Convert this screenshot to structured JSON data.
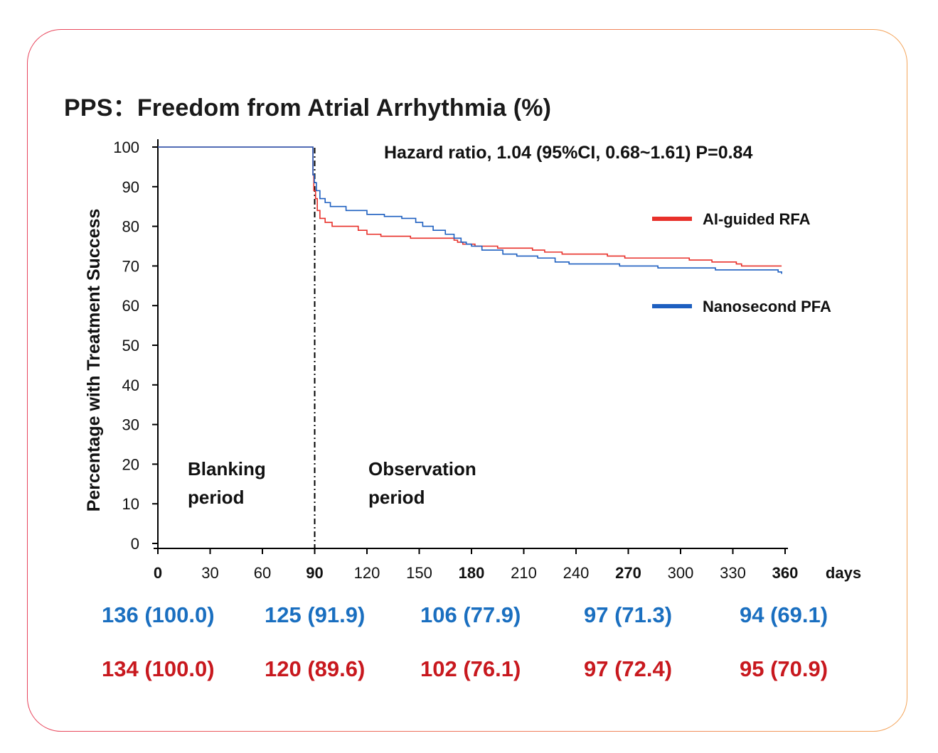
{
  "title": "PPS：Freedom from Atrial Arrhythmia (%)",
  "colors": {
    "red": "#e8302a",
    "blue": "#1d5fc0",
    "risk_blue": "#1a6fc0",
    "risk_red": "#c8181e",
    "frame": "#e8445c"
  },
  "chart_data": {
    "type": "line",
    "step": true,
    "title": "PPS：Freedom from Atrial Arrhythmia (%)",
    "ylabel": "Percentage with Treatment Success",
    "xlabel": "days",
    "xlim": [
      0,
      360
    ],
    "ylim": [
      0,
      100
    ],
    "xticks": [
      0,
      30,
      60,
      90,
      120,
      150,
      180,
      210,
      240,
      270,
      300,
      330,
      360
    ],
    "xticks_bold": [
      0,
      90,
      180,
      270,
      360
    ],
    "yticks": [
      0,
      10,
      20,
      30,
      40,
      50,
      60,
      70,
      80,
      90,
      100
    ],
    "grid": false,
    "legend_position": "right",
    "annotation": "Hazard ratio, 1.04 (95%CI, 0.68~1.61) P=0.84",
    "vline": {
      "x": 90
    },
    "regions": [
      {
        "line1": "Blanking",
        "line2": "period"
      },
      {
        "line1": "Observation",
        "line2": "period"
      }
    ],
    "series": [
      {
        "name": "AI-guided RFA",
        "color": "#e8302a",
        "points": [
          [
            0,
            100
          ],
          [
            89,
            100
          ],
          [
            89,
            93
          ],
          [
            89.5,
            89
          ],
          [
            90.5,
            87
          ],
          [
            91.5,
            84
          ],
          [
            93,
            82
          ],
          [
            96,
            81
          ],
          [
            100,
            80
          ],
          [
            115,
            79
          ],
          [
            120,
            78
          ],
          [
            128,
            77.5
          ],
          [
            145,
            77
          ],
          [
            170,
            76.5
          ],
          [
            172,
            76
          ],
          [
            175,
            75.5
          ],
          [
            182,
            75
          ],
          [
            195,
            74.5
          ],
          [
            215,
            74
          ],
          [
            222,
            73.5
          ],
          [
            232,
            73
          ],
          [
            258,
            72.5
          ],
          [
            268,
            72
          ],
          [
            305,
            71.5
          ],
          [
            318,
            71
          ],
          [
            332,
            70.5
          ],
          [
            335,
            70
          ],
          [
            358,
            70
          ]
        ]
      },
      {
        "name": "Nanosecond PFA",
        "color": "#1d5fc0",
        "points": [
          [
            0,
            100
          ],
          [
            89,
            100
          ],
          [
            89,
            93
          ],
          [
            89.8,
            91
          ],
          [
            91,
            89
          ],
          [
            93,
            87
          ],
          [
            96,
            86
          ],
          [
            99,
            85
          ],
          [
            108,
            84
          ],
          [
            120,
            83
          ],
          [
            130,
            82.5
          ],
          [
            140,
            82
          ],
          [
            148,
            81
          ],
          [
            152,
            80
          ],
          [
            158,
            79
          ],
          [
            165,
            78
          ],
          [
            170,
            77
          ],
          [
            174,
            76
          ],
          [
            177,
            75.5
          ],
          [
            180,
            75
          ],
          [
            186,
            74
          ],
          [
            198,
            73
          ],
          [
            206,
            72.5
          ],
          [
            218,
            72
          ],
          [
            228,
            71
          ],
          [
            236,
            70.5
          ],
          [
            265,
            70
          ],
          [
            287,
            69.5
          ],
          [
            320,
            69
          ],
          [
            326,
            69
          ],
          [
            356,
            68.5
          ],
          [
            358,
            68
          ]
        ]
      }
    ],
    "risk_table": [
      {
        "color_key": "risk_blue",
        "cells": [
          "136 (100.0)",
          "125 (91.9)",
          "106 (77.9)",
          "97 (71.3)",
          "94 (69.1)"
        ]
      },
      {
        "color_key": "risk_red",
        "cells": [
          "134 (100.0)",
          "120 (89.6)",
          "102 (76.1)",
          "97 (72.4)",
          "95 (70.9)"
        ]
      }
    ]
  }
}
